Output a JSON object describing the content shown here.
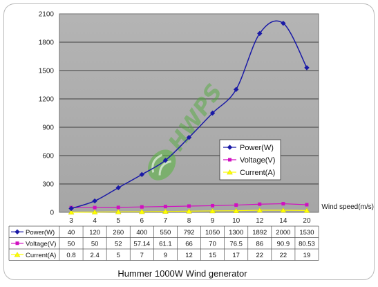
{
  "chart_data": {
    "type": "line",
    "title": "Hummer 1000W Wind generator",
    "xlabel": "Wind speed(m/s)",
    "ylabel": "",
    "ylim": [
      0,
      2100
    ],
    "yticks": [
      "0",
      "300",
      "600",
      "900",
      "1200",
      "1500",
      "1800",
      "2100"
    ],
    "categories": [
      "3",
      "4",
      "5",
      "6",
      "7",
      "8",
      "9",
      "10",
      "12",
      "14",
      "20"
    ],
    "grid": true,
    "legend_position": "inside-right",
    "series": [
      {
        "name": "Power(W)",
        "color": "#1a1aa6",
        "marker": "diamond",
        "values": [
          40,
          120,
          260,
          400,
          550,
          792,
          1050,
          1300,
          1892,
          2000,
          1530
        ],
        "labels": [
          "40",
          "120",
          "260",
          "400",
          "550",
          "792",
          "1050",
          "1300",
          "1892",
          "2000",
          "1530"
        ]
      },
      {
        "name": "Voltage(V)",
        "color": "#d010c0",
        "marker": "square",
        "values": [
          50,
          50,
          52,
          57.14,
          61.1,
          66,
          70,
          76.5,
          86,
          90.9,
          80.53
        ],
        "labels": [
          "50",
          "50",
          "52",
          "57.14",
          "61.1",
          "66",
          "70",
          "76.5",
          "86",
          "90.9",
          "80.53"
        ]
      },
      {
        "name": "Current(A)",
        "color": "#ffff00",
        "marker": "triangle",
        "values": [
          0.8,
          2.4,
          5,
          7,
          9,
          12,
          15,
          17,
          22,
          22,
          19
        ],
        "labels": [
          "0.8",
          "2.4",
          "5",
          "7",
          "9",
          "12",
          "15",
          "17",
          "22",
          "22",
          "19"
        ]
      }
    ],
    "watermark": "HWPS"
  }
}
